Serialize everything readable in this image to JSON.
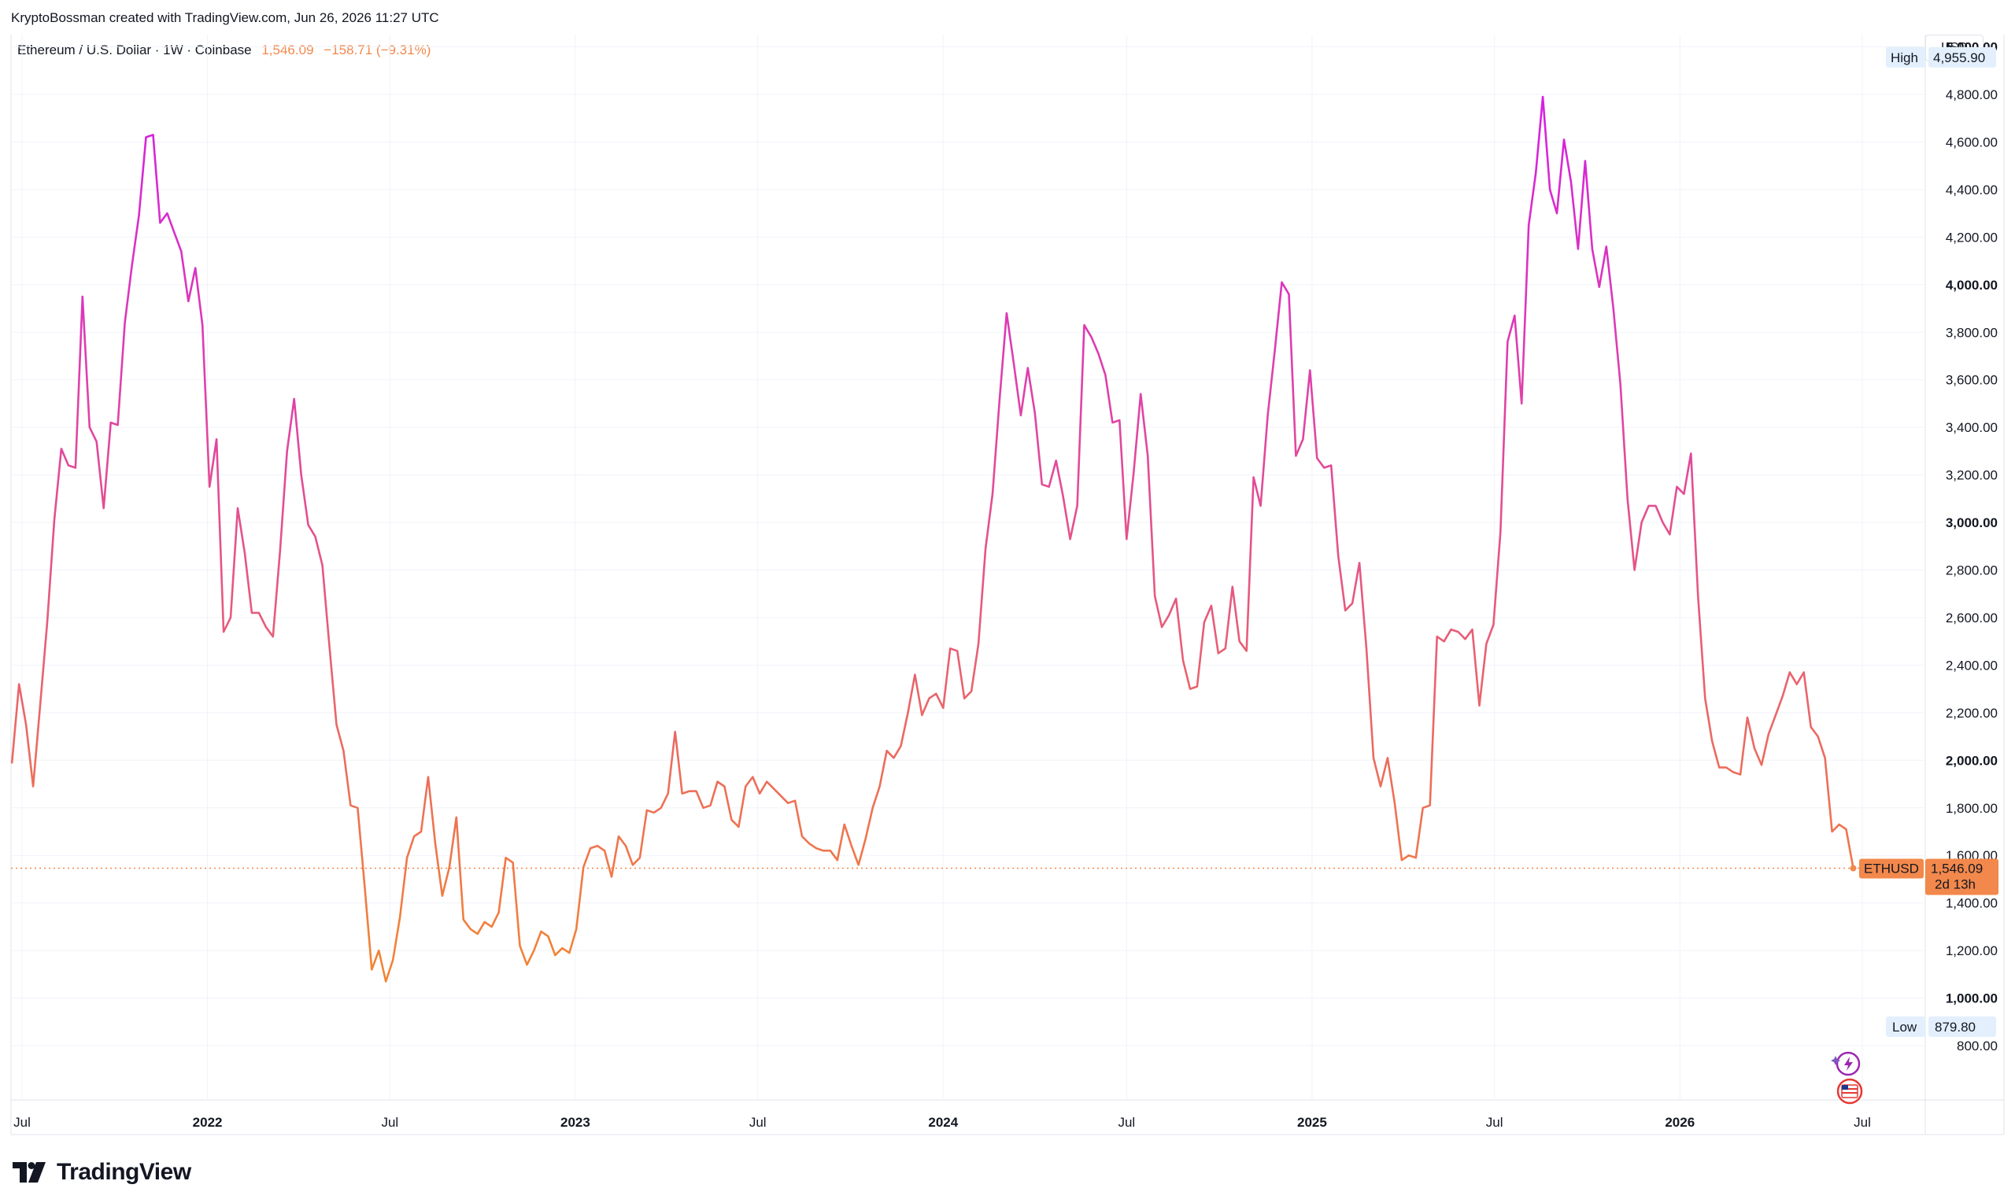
{
  "header": {
    "credit": "KryptoBossman created with TradingView.com, Jun 26, 2026 11:27 UTC",
    "symbol": "Ethereum / U.S. Dollar · 1W · Coinbase",
    "last_price": "1,546.09",
    "change": "−158.71 (−9.31%)",
    "currency": "USD"
  },
  "brand": {
    "name": "TradingView",
    "logo_icon": "tradingview-logo-icon"
  },
  "colors": {
    "line_start": "#f7931a",
    "line_end": "#d41ee6",
    "price_tag": "#f2884b",
    "grid": "#f0f3fa"
  },
  "chart_data": {
    "type": "line",
    "title": "Ethereum / U.S. Dollar · 1W · Coinbase",
    "interval": "1W",
    "ylim": [
      700,
      5100
    ],
    "y_scale": "linear",
    "grid": true,
    "y_ticks": [
      {
        "value": 5000,
        "label": "5,000.00",
        "bold": true
      },
      {
        "value": 4800,
        "label": "4,800.00",
        "bold": false
      },
      {
        "value": 4600,
        "label": "4,600.00",
        "bold": false
      },
      {
        "value": 4400,
        "label": "4,400.00",
        "bold": false
      },
      {
        "value": 4200,
        "label": "4,200.00",
        "bold": false
      },
      {
        "value": 4000,
        "label": "4,000.00",
        "bold": true
      },
      {
        "value": 3800,
        "label": "3,800.00",
        "bold": false
      },
      {
        "value": 3600,
        "label": "3,600.00",
        "bold": false
      },
      {
        "value": 3400,
        "label": "3,400.00",
        "bold": false
      },
      {
        "value": 3200,
        "label": "3,200.00",
        "bold": false
      },
      {
        "value": 3000,
        "label": "3,000.00",
        "bold": true
      },
      {
        "value": 2800,
        "label": "2,800.00",
        "bold": false
      },
      {
        "value": 2600,
        "label": "2,600.00",
        "bold": false
      },
      {
        "value": 2400,
        "label": "2,400.00",
        "bold": false
      },
      {
        "value": 2200,
        "label": "2,200.00",
        "bold": false
      },
      {
        "value": 2000,
        "label": "2,000.00",
        "bold": true
      },
      {
        "value": 1800,
        "label": "1,800.00",
        "bold": false
      },
      {
        "value": 1600,
        "label": "1,600.00",
        "bold": false
      },
      {
        "value": 1400,
        "label": "1,400.00",
        "bold": false
      },
      {
        "value": 1200,
        "label": "1,200.00",
        "bold": false
      },
      {
        "value": 1000,
        "label": "1,000.00",
        "bold": true
      },
      {
        "value": 800,
        "label": "800.00",
        "bold": false
      }
    ],
    "x_ticks": [
      {
        "date": "2021-07-01",
        "label": "Jul",
        "bold": false
      },
      {
        "date": "2022-01-01",
        "label": "2022",
        "bold": true
      },
      {
        "date": "2022-07-01",
        "label": "Jul",
        "bold": false
      },
      {
        "date": "2023-01-01",
        "label": "2023",
        "bold": true
      },
      {
        "date": "2023-07-01",
        "label": "Jul",
        "bold": false
      },
      {
        "date": "2024-01-01",
        "label": "2024",
        "bold": true
      },
      {
        "date": "2024-07-01",
        "label": "Jul",
        "bold": false
      },
      {
        "date": "2025-01-01",
        "label": "2025",
        "bold": true
      },
      {
        "date": "2025-07-01",
        "label": "Jul",
        "bold": false
      },
      {
        "date": "2026-01-01",
        "label": "2026",
        "bold": true
      },
      {
        "date": "2026-07-01",
        "label": "Jul",
        "bold": false
      }
    ],
    "high": {
      "label": "High",
      "value": 4955.9,
      "text": "4,955.90"
    },
    "low": {
      "label": "Low",
      "value": 879.8,
      "text": "879.80"
    },
    "last": {
      "label": "ETHUSD",
      "value": 1546.09,
      "text": "1,546.09",
      "countdown": "2d 13h"
    },
    "series": [
      {
        "name": "ETHUSD",
        "x": [
          "2021-06-21",
          "2021-06-28",
          "2021-07-05",
          "2021-07-12",
          "2021-07-19",
          "2021-07-26",
          "2021-08-02",
          "2021-08-09",
          "2021-08-16",
          "2021-08-23",
          "2021-08-30",
          "2021-09-06",
          "2021-09-13",
          "2021-09-20",
          "2021-09-27",
          "2021-10-04",
          "2021-10-11",
          "2021-10-18",
          "2021-10-25",
          "2021-11-01",
          "2021-11-08",
          "2021-11-15",
          "2021-11-22",
          "2021-11-29",
          "2021-12-06",
          "2021-12-13",
          "2021-12-20",
          "2021-12-27",
          "2022-01-03",
          "2022-01-10",
          "2022-01-17",
          "2022-01-24",
          "2022-01-31",
          "2022-02-07",
          "2022-02-14",
          "2022-02-21",
          "2022-02-28",
          "2022-03-07",
          "2022-03-14",
          "2022-03-21",
          "2022-03-28",
          "2022-04-04",
          "2022-04-11",
          "2022-04-18",
          "2022-04-25",
          "2022-05-02",
          "2022-05-09",
          "2022-05-16",
          "2022-05-23",
          "2022-05-30",
          "2022-06-06",
          "2022-06-13",
          "2022-06-20",
          "2022-06-27",
          "2022-07-04",
          "2022-07-11",
          "2022-07-18",
          "2022-07-25",
          "2022-08-01",
          "2022-08-08",
          "2022-08-15",
          "2022-08-22",
          "2022-08-29",
          "2022-09-05",
          "2022-09-12",
          "2022-09-19",
          "2022-09-26",
          "2022-10-03",
          "2022-10-10",
          "2022-10-17",
          "2022-10-24",
          "2022-10-31",
          "2022-11-07",
          "2022-11-14",
          "2022-11-21",
          "2022-11-28",
          "2022-12-05",
          "2022-12-12",
          "2022-12-19",
          "2022-12-26",
          "2023-01-02",
          "2023-01-09",
          "2023-01-16",
          "2023-01-23",
          "2023-01-30",
          "2023-02-06",
          "2023-02-13",
          "2023-02-20",
          "2023-02-27",
          "2023-03-06",
          "2023-03-13",
          "2023-03-20",
          "2023-03-27",
          "2023-04-03",
          "2023-04-10",
          "2023-04-17",
          "2023-04-24",
          "2023-05-01",
          "2023-05-08",
          "2023-05-15",
          "2023-05-22",
          "2023-05-29",
          "2023-06-05",
          "2023-06-12",
          "2023-06-19",
          "2023-06-26",
          "2023-07-03",
          "2023-07-10",
          "2023-07-17",
          "2023-07-24",
          "2023-07-31",
          "2023-08-07",
          "2023-08-14",
          "2023-08-21",
          "2023-08-28",
          "2023-09-04",
          "2023-09-11",
          "2023-09-18",
          "2023-09-25",
          "2023-10-02",
          "2023-10-09",
          "2023-10-16",
          "2023-10-23",
          "2023-10-30",
          "2023-11-06",
          "2023-11-13",
          "2023-11-20",
          "2023-11-27",
          "2023-12-04",
          "2023-12-11",
          "2023-12-18",
          "2023-12-25",
          "2024-01-01",
          "2024-01-08",
          "2024-01-15",
          "2024-01-22",
          "2024-01-29",
          "2024-02-05",
          "2024-02-12",
          "2024-02-19",
          "2024-02-26",
          "2024-03-04",
          "2024-03-11",
          "2024-03-18",
          "2024-03-25",
          "2024-04-01",
          "2024-04-08",
          "2024-04-15",
          "2024-04-22",
          "2024-04-29",
          "2024-05-06",
          "2024-05-13",
          "2024-05-20",
          "2024-05-27",
          "2024-06-03",
          "2024-06-10",
          "2024-06-17",
          "2024-06-24",
          "2024-07-01",
          "2024-07-08",
          "2024-07-15",
          "2024-07-22",
          "2024-07-29",
          "2024-08-05",
          "2024-08-12",
          "2024-08-19",
          "2024-08-26",
          "2024-09-02",
          "2024-09-09",
          "2024-09-16",
          "2024-09-23",
          "2024-09-30",
          "2024-10-07",
          "2024-10-14",
          "2024-10-21",
          "2024-10-28",
          "2024-11-04",
          "2024-11-11",
          "2024-11-18",
          "2024-11-25",
          "2024-12-02",
          "2024-12-09",
          "2024-12-16",
          "2024-12-23",
          "2024-12-30",
          "2025-01-06",
          "2025-01-13",
          "2025-01-20",
          "2025-01-27",
          "2025-02-03",
          "2025-02-10",
          "2025-02-17",
          "2025-02-24",
          "2025-03-03",
          "2025-03-10",
          "2025-03-17",
          "2025-03-24",
          "2025-03-31",
          "2025-04-07",
          "2025-04-14",
          "2025-04-21",
          "2025-04-28",
          "2025-05-05",
          "2025-05-12",
          "2025-05-19",
          "2025-05-26",
          "2025-06-02",
          "2025-06-09",
          "2025-06-16",
          "2025-06-23",
          "2025-06-30",
          "2025-07-07",
          "2025-07-14",
          "2025-07-21",
          "2025-07-28",
          "2025-08-04",
          "2025-08-11",
          "2025-08-18",
          "2025-08-25",
          "2025-09-01",
          "2025-09-08",
          "2025-09-15",
          "2025-09-22",
          "2025-09-29",
          "2025-10-06",
          "2025-10-13",
          "2025-10-20",
          "2025-10-27",
          "2025-11-03",
          "2025-11-10",
          "2025-11-17",
          "2025-11-24",
          "2025-12-01",
          "2025-12-08",
          "2025-12-15",
          "2025-12-22",
          "2025-12-29",
          "2026-01-05",
          "2026-01-12",
          "2026-01-19",
          "2026-01-26",
          "2026-02-02",
          "2026-02-09",
          "2026-02-16",
          "2026-02-23",
          "2026-03-02",
          "2026-03-09",
          "2026-03-16",
          "2026-03-23",
          "2026-03-30",
          "2026-04-06",
          "2026-04-13",
          "2026-04-20",
          "2026-04-27",
          "2026-05-04",
          "2026-05-11",
          "2026-05-18",
          "2026-05-25",
          "2026-06-01",
          "2026-06-08",
          "2026-06-15",
          "2026-06-22"
        ],
        "values": [
          1990,
          2320,
          2150,
          1890,
          2230,
          2580,
          3010,
          3310,
          3240,
          3230,
          3950,
          3400,
          3340,
          3060,
          3420,
          3410,
          3840,
          4080,
          4290,
          4620,
          4630,
          4260,
          4300,
          4220,
          4140,
          3930,
          4070,
          3830,
          3150,
          3350,
          2540,
          2600,
          3060,
          2870,
          2620,
          2620,
          2560,
          2520,
          2880,
          3300,
          3520,
          3200,
          2990,
          2940,
          2820,
          2480,
          2150,
          2040,
          1810,
          1800,
          1470,
          1120,
          1200,
          1070,
          1160,
          1340,
          1590,
          1680,
          1700,
          1930,
          1650,
          1430,
          1550,
          1760,
          1330,
          1290,
          1270,
          1320,
          1300,
          1360,
          1590,
          1570,
          1220,
          1140,
          1200,
          1280,
          1260,
          1180,
          1210,
          1190,
          1290,
          1550,
          1630,
          1640,
          1620,
          1510,
          1680,
          1640,
          1560,
          1590,
          1790,
          1780,
          1800,
          1860,
          2120,
          1860,
          1870,
          1870,
          1800,
          1810,
          1910,
          1890,
          1750,
          1720,
          1890,
          1930,
          1860,
          1910,
          1880,
          1850,
          1820,
          1830,
          1680,
          1650,
          1630,
          1620,
          1620,
          1580,
          1730,
          1640,
          1560,
          1670,
          1800,
          1890,
          2040,
          2010,
          2060,
          2200,
          2360,
          2190,
          2260,
          2280,
          2220,
          2470,
          2460,
          2260,
          2290,
          2490,
          2890,
          3120,
          3520,
          3880,
          3670,
          3450,
          3650,
          3460,
          3160,
          3150,
          3260,
          3110,
          2930,
          3070,
          3830,
          3780,
          3710,
          3620,
          3420,
          3430,
          2930,
          3210,
          3540,
          3280,
          2690,
          2560,
          2610,
          2680,
          2420,
          2300,
          2310,
          2580,
          2650,
          2450,
          2470,
          2730,
          2500,
          2460,
          3190,
          3070,
          3450,
          3720,
          4010,
          3960,
          3280,
          3350,
          3640,
          3270,
          3230,
          3240,
          2860,
          2630,
          2660,
          2830,
          2470,
          2010,
          1890,
          2010,
          1820,
          1580,
          1600,
          1590,
          1800,
          1810,
          2520,
          2500,
          2550,
          2540,
          2510,
          2550,
          2230,
          2490,
          2570,
          2960,
          3760,
          3870,
          3500,
          4250,
          4470,
          4790,
          4400,
          4300,
          4610,
          4430,
          4150,
          4520,
          4150,
          3990,
          4160,
          3900,
          3580,
          3100,
          2800,
          3000,
          3070,
          3070,
          3000,
          2950,
          3150,
          3120,
          3290,
          2690,
          2260,
          2080,
          1970,
          1970,
          1950,
          1940,
          2180,
          2050,
          1980,
          2110,
          2190,
          2270,
          2370,
          2320,
          2370,
          2140,
          2100,
          2010,
          1700,
          1730,
          1710,
          1546
        ]
      }
    ]
  }
}
